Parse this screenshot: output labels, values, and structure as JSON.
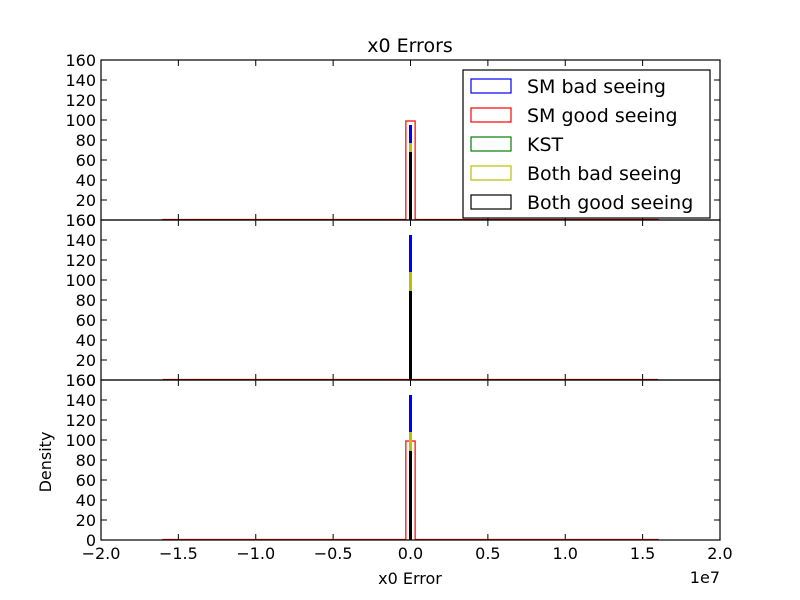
{
  "chart_data": {
    "type": "histogram",
    "title": "x0 Errors",
    "xlabel": "x0 Error",
    "ylabel": "Density",
    "x_offset_label": "1e7",
    "xlim": [
      -2.0,
      2.0
    ],
    "x_ticks": [
      "−2.0",
      "−1.5",
      "−1.0",
      "−0.5",
      "0.0",
      "0.5",
      "1.0",
      "1.5",
      "2.0"
    ],
    "x_tick_values": [
      -2.0,
      -1.5,
      -1.0,
      -0.5,
      0.0,
      0.5,
      1.0,
      1.5,
      2.0
    ],
    "legend_placement": "upper right of top panel",
    "legend": [
      {
        "label": "SM bad seeing",
        "color": "#0000ff"
      },
      {
        "label": "SM good seeing",
        "color": "#ff0000"
      },
      {
        "label": "KST",
        "color": "#008000"
      },
      {
        "label": "Both bad seeing",
        "color": "#bfbf00"
      },
      {
        "label": "Both good seeing",
        "color": "#000000"
      }
    ],
    "panels": [
      {
        "ylim": [
          0,
          160
        ],
        "y_ticks": [
          "0",
          "20",
          "40",
          "60",
          "80",
          "100",
          "120",
          "140",
          "160"
        ],
        "y_tick_values": [
          0,
          20,
          40,
          60,
          80,
          100,
          120,
          140,
          160
        ],
        "series": [
          {
            "name": "SM good seeing",
            "color": "#ff0000",
            "style": "step-outline",
            "range": [
              -1.6,
              1.6
            ],
            "peak_x": [
              -0.03,
              0.03
            ],
            "peak": 99
          },
          {
            "name": "SM bad seeing",
            "color": "#0000ff",
            "style": "spike",
            "x": 0.0,
            "peak": 95
          },
          {
            "name": "Both bad seeing",
            "color": "#bfbf00",
            "style": "spike",
            "x": 0.0,
            "peak": 77
          },
          {
            "name": "Both good seeing",
            "color": "#000000",
            "style": "spike",
            "x": 0.0,
            "peak": 68
          }
        ]
      },
      {
        "ylim": [
          0,
          160
        ],
        "y_ticks": [
          "0",
          "20",
          "40",
          "60",
          "80",
          "100",
          "120",
          "140",
          "160"
        ],
        "y_tick_values": [
          0,
          20,
          40,
          60,
          80,
          100,
          120,
          140,
          160
        ],
        "series": [
          {
            "name": "SM good seeing",
            "color": "#ff0000",
            "style": "baseline",
            "range": [
              -1.6,
              1.6
            ]
          },
          {
            "name": "SM bad seeing",
            "color": "#0000ff",
            "style": "spike",
            "x": 0.0,
            "peak": 145
          },
          {
            "name": "Both bad seeing",
            "color": "#bfbf00",
            "style": "spike",
            "x": 0.0,
            "peak": 108
          },
          {
            "name": "Both good seeing",
            "color": "#000000",
            "style": "spike",
            "x": 0.0,
            "peak": 89
          }
        ]
      },
      {
        "ylim": [
          0,
          160
        ],
        "y_ticks": [
          "0",
          "20",
          "40",
          "60",
          "80",
          "100",
          "120",
          "140",
          "160"
        ],
        "y_tick_values": [
          0,
          20,
          40,
          60,
          80,
          100,
          120,
          140,
          160
        ],
        "series": [
          {
            "name": "SM good seeing",
            "color": "#ff0000",
            "style": "step-outline",
            "range": [
              -1.6,
              1.6
            ],
            "peak_x": [
              -0.03,
              0.03
            ],
            "peak": 99
          },
          {
            "name": "SM bad seeing",
            "color": "#0000ff",
            "style": "spike",
            "x": 0.0,
            "peak": 145
          },
          {
            "name": "Both bad seeing",
            "color": "#bfbf00",
            "style": "spike",
            "x": 0.0,
            "peak": 108
          },
          {
            "name": "Both good seeing",
            "color": "#000000",
            "style": "spike",
            "x": 0.0,
            "peak": 89
          }
        ]
      }
    ]
  }
}
